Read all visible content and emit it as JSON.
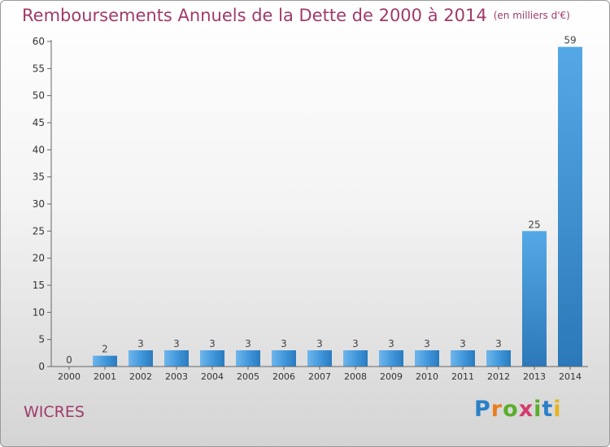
{
  "title": "Remboursements Annuels de la Dette de 2000 à 2014",
  "unit": "(en milliers d'€)",
  "commune": "WICRES",
  "logo": {
    "letters": [
      "P",
      "r",
      "o",
      "x",
      "i",
      "t",
      "i"
    ],
    "colors": [
      "#2a7fc8",
      "#e87d1e",
      "#5aae2a",
      "#d63a6c",
      "#5aae2a",
      "#2a7fc8",
      "#e8b41e"
    ]
  },
  "colors": {
    "bar": "#3f96db",
    "title": "#a03a6a"
  },
  "chart_data": {
    "type": "bar",
    "title": "Remboursements Annuels de la Dette de 2000 à 2014",
    "categories": [
      "2000",
      "2001",
      "2002",
      "2003",
      "2004",
      "2005",
      "2006",
      "2007",
      "2008",
      "2009",
      "2010",
      "2011",
      "2012",
      "2013",
      "2014"
    ],
    "values": [
      0,
      2,
      3,
      3,
      3,
      3,
      3,
      3,
      3,
      3,
      3,
      3,
      3,
      25,
      59
    ],
    "data_labels": [
      "0",
      "2",
      "3",
      "3",
      "3",
      "3",
      "3",
      "3",
      "3",
      "3",
      "3",
      "3",
      "3",
      "25",
      "59"
    ],
    "xlabel": "",
    "ylabel": "",
    "ylim": [
      0,
      60
    ],
    "yticks": [
      0,
      5,
      10,
      15,
      20,
      25,
      30,
      35,
      40,
      45,
      50,
      55,
      60
    ],
    "grid": false,
    "legend": "none"
  }
}
